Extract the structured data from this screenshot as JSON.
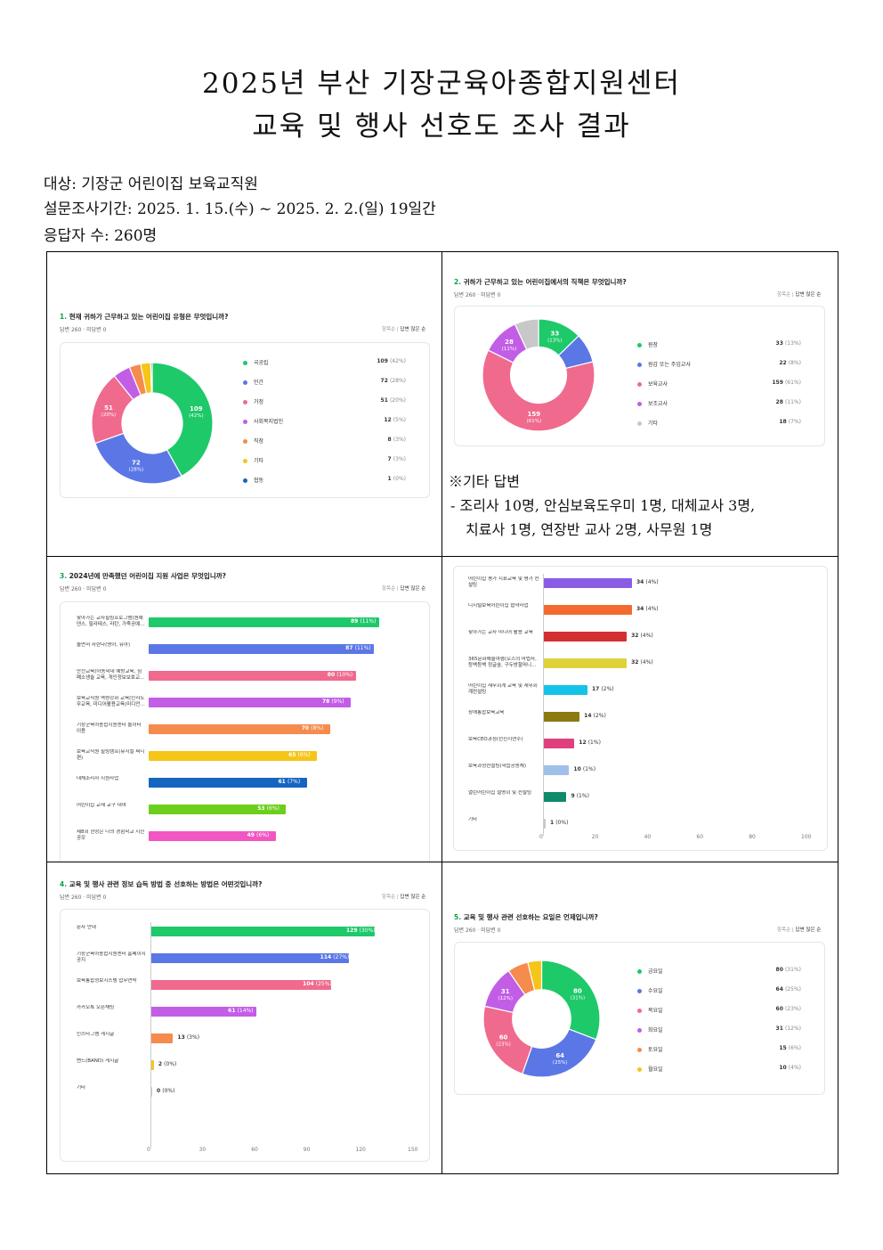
{
  "header": {
    "title1": "2025년  부산  기장군육아종합지원센터",
    "title2": "교육  및  행사  선호도  조사  결과",
    "target": "대상: 기장군 어린이집 보육교직원",
    "period": "설문조사기간: 2025. 1. 15.(수) ~ 2025. 2. 2.(일) 19일간",
    "respondents": "응답자 수: 260명"
  },
  "q1": {
    "num": "1.",
    "title": "현재 귀하가 근무하고 있는 어린이집 유형은 무엇입니까?",
    "sub": "답변 260 · 미답변 0",
    "sort_a": "항목순",
    "sort_b": "답변 많은 순",
    "chart_data": {
      "type": "pie",
      "items": [
        {
          "label": "국공립",
          "value": 109,
          "pct": "(42%)",
          "color": "#1ec96a"
        },
        {
          "label": "민간",
          "value": 72,
          "pct": "(28%)",
          "color": "#5b77e6"
        },
        {
          "label": "가정",
          "value": 51,
          "pct": "(20%)",
          "color": "#f06a8e"
        },
        {
          "label": "사회복지법인",
          "value": 12,
          "pct": "(5%)",
          "color": "#c25ee6"
        },
        {
          "label": "직장",
          "value": 8,
          "pct": "(3%)",
          "color": "#f58b4c"
        },
        {
          "label": "기타",
          "value": 7,
          "pct": "(3%)",
          "color": "#f5c518"
        },
        {
          "label": "협동",
          "value": 1,
          "pct": "(0%)",
          "color": "#1565c0"
        }
      ]
    }
  },
  "q2": {
    "num": "2.",
    "title": "귀하가 근무하고 있는 어린이집에서의 직책은 무엇입니까?",
    "sub": "답변 260 · 미답변 0",
    "sort_a": "항목순",
    "sort_b": "답변 많은 순",
    "chart_data": {
      "type": "pie",
      "items": [
        {
          "label": "원장",
          "value": 33,
          "pct": "(13%)",
          "color": "#1ec96a"
        },
        {
          "label": "원감 또는 주임교사",
          "value": 22,
          "pct": "(8%)",
          "color": "#5b77e6"
        },
        {
          "label": "보육교사",
          "value": 159,
          "pct": "(61%)",
          "color": "#f06a8e"
        },
        {
          "label": "보조교사",
          "value": 28,
          "pct": "(11%)",
          "color": "#c25ee6"
        },
        {
          "label": "기타",
          "value": 18,
          "pct": "(7%)",
          "color": "#c8c8c8"
        }
      ]
    },
    "note_title": "※기타 답변",
    "note_line1": "-  조리사 10명, 안심보육도우미 1명, 대체교사 3명,",
    "note_line2": "치료사 1명, 연장반 교사 2명, 사무원 1명"
  },
  "q3": {
    "num": "3.",
    "title": "2024년에 만족했던 어린이집 지원 사업은 무엇입니까?",
    "sub": "답변 260 · 미답변 0",
    "sort_a": "항목순",
    "sort_b": "답변 많은 순",
    "chart_data": {
      "type": "bar",
      "max": 100,
      "items": [
        {
          "label": "찾아가는 교사힐링프로그램(원예 댄스, 필라테스, 라탄, 가죽공예…",
          "value": 89,
          "pct": "(11%)",
          "color": "#1ec96a"
        },
        {
          "label": "놀면서 자란다(영아, 유아)",
          "value": 87,
          "pct": "(11%)",
          "color": "#5b77e6"
        },
        {
          "label": "안전교육(아동학대 예방교육, 심폐소생술 교육, 개인정보보호교…",
          "value": 80,
          "pct": "(10%)",
          "color": "#f06a8e"
        },
        {
          "label": "보육교직원 역량강화 교육(인사노무교육, 미디어활용교육(미디언…",
          "value": 78,
          "pct": "(9%)",
          "color": "#c25ee6"
        },
        {
          "label": "기장군육아종합지원센터 놀이터 이용",
          "value": 70,
          "pct": "(8%)",
          "color": "#f58b4c"
        },
        {
          "label": "보육교직원 힐링캠프(뮤지컬 써니 편)",
          "value": 65,
          "pct": "(8%)",
          "color": "#f5c518"
        },
        {
          "label": "대체조리사 지원사업",
          "value": 61,
          "pct": "(7%)",
          "color": "#1565c0"
        },
        {
          "label": "어린이집 교재 교구 대여",
          "value": 53,
          "pct": "(6%)",
          "color": "#6ccf1c"
        },
        {
          "label": "제8회 현장은 나의 경험학교 시진 공모",
          "value": 49,
          "pct": "(6%)",
          "color": "#f256c2"
        }
      ]
    }
  },
  "q3b": {
    "ticks": [
      "0",
      "20",
      "40",
      "60",
      "80",
      "100"
    ],
    "chart_data": {
      "type": "bar",
      "max": 100,
      "items": [
        {
          "label": "어린이집 평가 지표교육 및 평가 컨설팅",
          "value": 34,
          "pct": "(4%)",
          "color": "#8a5ce6"
        },
        {
          "label": "디지털보육어린이집 협약사업",
          "value": 34,
          "pct": "(4%)",
          "color": "#f26a30"
        },
        {
          "label": "찾아가는 교사 미디어 활용 교육",
          "value": 32,
          "pct": "(4%)",
          "color": "#d32f2f"
        },
        {
          "label": "365문화예술여행(오즈의 마법사, 등백등백 정글숲, 구두방할머니…",
          "value": 32,
          "pct": "(4%)",
          "color": "#e0d23a"
        },
        {
          "label": "어린이집 재무회계 교육 및 재무회계컨설팅",
          "value": 17,
          "pct": "(2%)",
          "color": "#14c3e8"
        },
        {
          "label": "장애통합보육교육",
          "value": 14,
          "pct": "(2%)",
          "color": "#8a7a10"
        },
        {
          "label": "보육CEO과정(선진지연수)",
          "value": 12,
          "pct": "(1%)",
          "color": "#e0407e"
        },
        {
          "label": "보육과정컨설팅(학습공동체)",
          "value": 10,
          "pct": "(1%)",
          "color": "#9fc0e8"
        },
        {
          "label": "열린어린이집 설명회 및 컨설팅",
          "value": 9,
          "pct": "(1%)",
          "color": "#0f8a6a"
        },
        {
          "label": "기타",
          "value": 1,
          "pct": "(0%)",
          "color": "#c8c8c8"
        }
      ]
    }
  },
  "q4": {
    "num": "4.",
    "title": "교육 및 행사 관련 정보 습득 방법 중 선호하는 방법은 어떤것입니까?",
    "sub": "답변 260 · 미답변 0",
    "sort_a": "항목순",
    "sort_b": "답변 많은 순",
    "ticks": [
      "0",
      "30",
      "60",
      "90",
      "120",
      "150"
    ],
    "chart_data": {
      "type": "bar",
      "max": 150,
      "items": [
        {
          "label": "문자 안내",
          "value": 129,
          "pct": "(30%)",
          "color": "#1ec96a"
        },
        {
          "label": "기장군육아종합지원센터 홈페이지 공지",
          "value": 114,
          "pct": "(27%)",
          "color": "#5b77e6"
        },
        {
          "label": "보육통합정보시스템 업무연락",
          "value": 104,
          "pct": "(25%)",
          "color": "#f06a8e"
        },
        {
          "label": "카카오톡 오픈채팅",
          "value": 61,
          "pct": "(14%)",
          "color": "#c25ee6"
        },
        {
          "label": "인스타그램 게시글",
          "value": 13,
          "pct": "(3%)",
          "color": "#f58b4c"
        },
        {
          "label": "밴드(BAND) 게시글",
          "value": 2,
          "pct": "(0%)",
          "color": "#f5c518"
        },
        {
          "label": "기타",
          "value": 0,
          "pct": "(0%)",
          "color": "#c8c8c8"
        }
      ]
    }
  },
  "q5": {
    "num": "5.",
    "title": "교육 및 행사 관련 선호하는 요일은 언제입니까?",
    "sub": "답변 260 · 미답변 0",
    "sort_a": "항목순",
    "sort_b": "답변 많은 순",
    "chart_data": {
      "type": "pie",
      "items": [
        {
          "label": "금요일",
          "value": 80,
          "pct": "(31%)",
          "color": "#1ec96a"
        },
        {
          "label": "수요일",
          "value": 64,
          "pct": "(25%)",
          "color": "#5b77e6"
        },
        {
          "label": "목요일",
          "value": 60,
          "pct": "(23%)",
          "color": "#f06a8e"
        },
        {
          "label": "화요일",
          "value": 31,
          "pct": "(12%)",
          "color": "#c25ee6"
        },
        {
          "label": "토요일",
          "value": 15,
          "pct": "(6%)",
          "color": "#f58b4c"
        },
        {
          "label": "월요일",
          "value": 10,
          "pct": "(4%)",
          "color": "#f5c518"
        }
      ]
    }
  }
}
